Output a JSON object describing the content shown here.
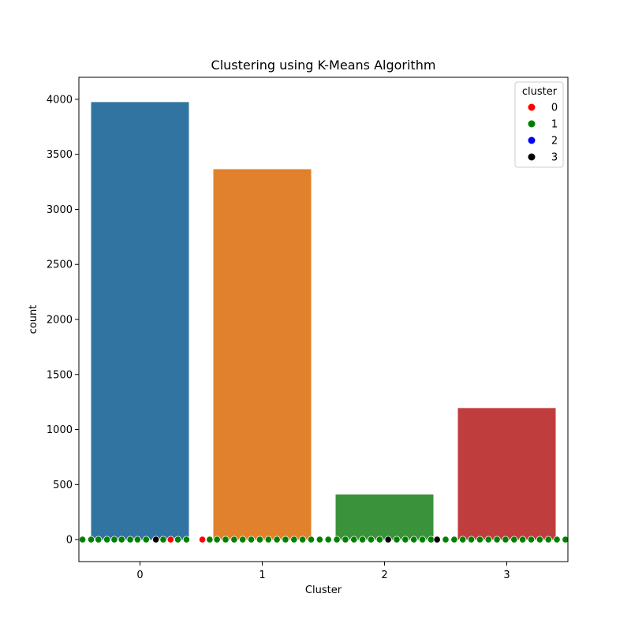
{
  "chart_data": {
    "type": "bar",
    "title": "Clustering using K-Means Algorithm",
    "xlabel": "Cluster",
    "ylabel": "count",
    "categories": [
      "0",
      "1",
      "2",
      "3"
    ],
    "values": [
      3975,
      3365,
      410,
      1195
    ],
    "bar_colors": [
      "#3274a1",
      "#e1812c",
      "#3a923a",
      "#c03d3e"
    ],
    "ylim": [
      -200,
      4200
    ],
    "xlim": [
      -0.5,
      3.5
    ],
    "yticks": [
      0,
      500,
      1000,
      1500,
      2000,
      2500,
      3000,
      3500,
      4000
    ],
    "ytick_labels": [
      "0",
      "500",
      "1000",
      "1500",
      "2000",
      "2500",
      "3000",
      "3500",
      "4000"
    ],
    "xtick_labels": [
      "0",
      "1",
      "2",
      "3"
    ],
    "grid": false,
    "scatter_overlay": {
      "type": "scatter",
      "y_value": 0,
      "x_range": [
        -0.5,
        3.5
      ],
      "dominant_cluster": "1",
      "points": [
        {
          "x": -0.47,
          "cluster": "1"
        },
        {
          "x": -0.4,
          "cluster": "1"
        },
        {
          "x": -0.34,
          "cluster": "1"
        },
        {
          "x": -0.27,
          "cluster": "1"
        },
        {
          "x": -0.21,
          "cluster": "1"
        },
        {
          "x": -0.15,
          "cluster": "1"
        },
        {
          "x": -0.08,
          "cluster": "1"
        },
        {
          "x": -0.02,
          "cluster": "1"
        },
        {
          "x": 0.05,
          "cluster": "1"
        },
        {
          "x": 0.13,
          "cluster": "3"
        },
        {
          "x": 0.19,
          "cluster": "1"
        },
        {
          "x": 0.25,
          "cluster": "0"
        },
        {
          "x": 0.31,
          "cluster": "1"
        },
        {
          "x": 0.38,
          "cluster": "1"
        },
        {
          "x": 0.51,
          "cluster": "0"
        },
        {
          "x": 0.57,
          "cluster": "1"
        },
        {
          "x": 0.63,
          "cluster": "1"
        },
        {
          "x": 0.7,
          "cluster": "1"
        },
        {
          "x": 0.77,
          "cluster": "1"
        },
        {
          "x": 0.84,
          "cluster": "1"
        },
        {
          "x": 0.91,
          "cluster": "1"
        },
        {
          "x": 0.98,
          "cluster": "1"
        },
        {
          "x": 1.05,
          "cluster": "1"
        },
        {
          "x": 1.12,
          "cluster": "1"
        },
        {
          "x": 1.19,
          "cluster": "1"
        },
        {
          "x": 1.26,
          "cluster": "1"
        },
        {
          "x": 1.33,
          "cluster": "1"
        },
        {
          "x": 1.4,
          "cluster": "1"
        },
        {
          "x": 1.47,
          "cluster": "1"
        },
        {
          "x": 1.54,
          "cluster": "1"
        },
        {
          "x": 1.61,
          "cluster": "1"
        },
        {
          "x": 1.68,
          "cluster": "1"
        },
        {
          "x": 1.75,
          "cluster": "1"
        },
        {
          "x": 1.82,
          "cluster": "1"
        },
        {
          "x": 1.89,
          "cluster": "1"
        },
        {
          "x": 1.96,
          "cluster": "1"
        },
        {
          "x": 2.03,
          "cluster": "3"
        },
        {
          "x": 2.1,
          "cluster": "1"
        },
        {
          "x": 2.17,
          "cluster": "1"
        },
        {
          "x": 2.24,
          "cluster": "1"
        },
        {
          "x": 2.31,
          "cluster": "1"
        },
        {
          "x": 2.38,
          "cluster": "1"
        },
        {
          "x": 2.43,
          "cluster": "3"
        },
        {
          "x": 2.5,
          "cluster": "1"
        },
        {
          "x": 2.57,
          "cluster": "1"
        },
        {
          "x": 2.64,
          "cluster": "1"
        },
        {
          "x": 2.71,
          "cluster": "1"
        },
        {
          "x": 2.78,
          "cluster": "1"
        },
        {
          "x": 2.85,
          "cluster": "1"
        },
        {
          "x": 2.92,
          "cluster": "1"
        },
        {
          "x": 2.99,
          "cluster": "1"
        },
        {
          "x": 3.06,
          "cluster": "1"
        },
        {
          "x": 3.13,
          "cluster": "1"
        },
        {
          "x": 3.2,
          "cluster": "1"
        },
        {
          "x": 3.27,
          "cluster": "1"
        },
        {
          "x": 3.34,
          "cluster": "1"
        },
        {
          "x": 3.41,
          "cluster": "1"
        },
        {
          "x": 3.48,
          "cluster": "1"
        }
      ]
    },
    "legend": {
      "title": "cluster",
      "placement": "top-right",
      "entries": [
        {
          "label": "0",
          "color": "#ff0000"
        },
        {
          "label": "1",
          "color": "#008000"
        },
        {
          "label": "2",
          "color": "#0000ff"
        },
        {
          "label": "3",
          "color": "#000000"
        }
      ]
    }
  }
}
